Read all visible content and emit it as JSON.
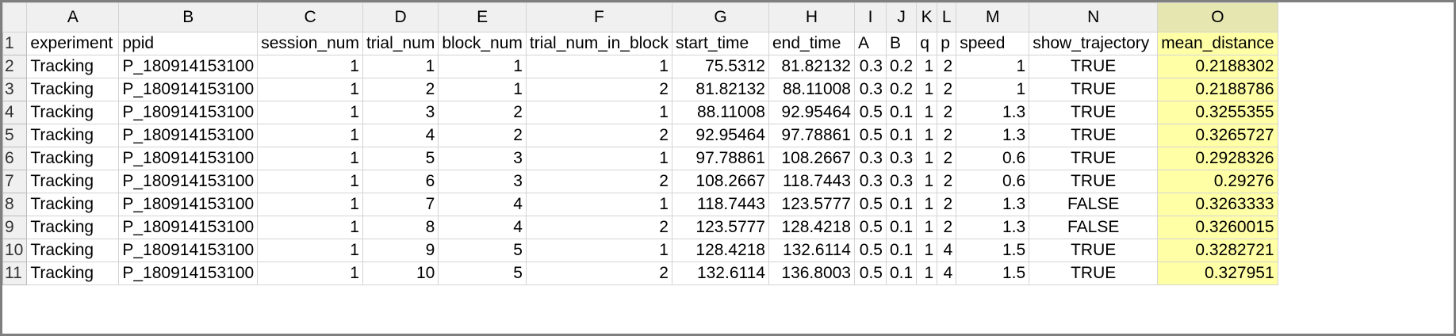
{
  "columns": [
    "A",
    "B",
    "C",
    "D",
    "E",
    "F",
    "G",
    "H",
    "I",
    "J",
    "K",
    "L",
    "M",
    "N",
    "O"
  ],
  "highlight_color": "#ffffa6",
  "rows": [
    {
      "num": "1",
      "cells": [
        "experiment",
        "ppid",
        "session_num",
        "trial_num",
        "block_num",
        "trial_num_in_block",
        "start_time",
        "end_time",
        "A",
        "B",
        "q",
        "p",
        "speed",
        "show_trajectory",
        "mean_distance"
      ]
    },
    {
      "num": "2",
      "cells": [
        "Tracking",
        "P_180914153100",
        "1",
        "1",
        "1",
        "1",
        "75.5312",
        "81.82132",
        "0.3",
        "0.2",
        "1",
        "2",
        "1",
        "TRUE",
        "0.2188302"
      ]
    },
    {
      "num": "3",
      "cells": [
        "Tracking",
        "P_180914153100",
        "1",
        "2",
        "1",
        "2",
        "81.82132",
        "88.11008",
        "0.3",
        "0.2",
        "1",
        "2",
        "1",
        "TRUE",
        "0.2188786"
      ]
    },
    {
      "num": "4",
      "cells": [
        "Tracking",
        "P_180914153100",
        "1",
        "3",
        "2",
        "1",
        "88.11008",
        "92.95464",
        "0.5",
        "0.1",
        "1",
        "2",
        "1.3",
        "TRUE",
        "0.3255355"
      ]
    },
    {
      "num": "5",
      "cells": [
        "Tracking",
        "P_180914153100",
        "1",
        "4",
        "2",
        "2",
        "92.95464",
        "97.78861",
        "0.5",
        "0.1",
        "1",
        "2",
        "1.3",
        "TRUE",
        "0.3265727"
      ]
    },
    {
      "num": "6",
      "cells": [
        "Tracking",
        "P_180914153100",
        "1",
        "5",
        "3",
        "1",
        "97.78861",
        "108.2667",
        "0.3",
        "0.3",
        "1",
        "2",
        "0.6",
        "TRUE",
        "0.2928326"
      ]
    },
    {
      "num": "7",
      "cells": [
        "Tracking",
        "P_180914153100",
        "1",
        "6",
        "3",
        "2",
        "108.2667",
        "118.7443",
        "0.3",
        "0.3",
        "1",
        "2",
        "0.6",
        "TRUE",
        "0.29276"
      ]
    },
    {
      "num": "8",
      "cells": [
        "Tracking",
        "P_180914153100",
        "1",
        "7",
        "4",
        "1",
        "118.7443",
        "123.5777",
        "0.5",
        "0.1",
        "1",
        "2",
        "1.3",
        "FALSE",
        "0.3263333"
      ]
    },
    {
      "num": "9",
      "cells": [
        "Tracking",
        "P_180914153100",
        "1",
        "8",
        "4",
        "2",
        "123.5777",
        "128.4218",
        "0.5",
        "0.1",
        "1",
        "2",
        "1.3",
        "FALSE",
        "0.3260015"
      ]
    },
    {
      "num": "10",
      "cells": [
        "Tracking",
        "P_180914153100",
        "1",
        "9",
        "5",
        "1",
        "128.4218",
        "132.6114",
        "0.5",
        "0.1",
        "1",
        "4",
        "1.5",
        "TRUE",
        "0.3282721"
      ]
    },
    {
      "num": "11",
      "cells": [
        "Tracking",
        "P_180914153100",
        "1",
        "10",
        "5",
        "2",
        "132.6114",
        "136.8003",
        "0.5",
        "0.1",
        "1",
        "4",
        "1.5",
        "TRUE",
        "0.327951"
      ]
    }
  ]
}
